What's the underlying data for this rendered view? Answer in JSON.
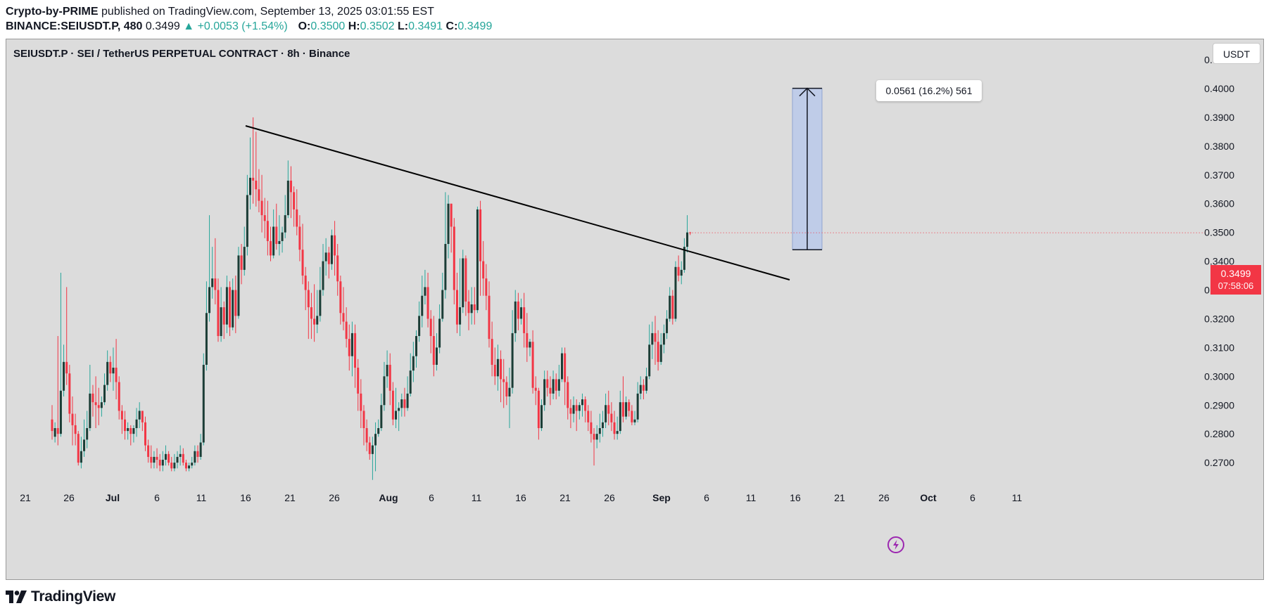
{
  "header": {
    "author": "Crypto-by-PRIME",
    "published_text": "published on TradingView.com, September 13, 2025 03:01:55 EST",
    "symbol": "BINANCE:SEIUSDT.P, 480",
    "last": "0.3499",
    "change": "▲ +0.0053 (+1.54%)",
    "o_label": "O:",
    "o_value": "0.3500",
    "h_label": "H:",
    "h_value": "0.3502",
    "l_label": "L:",
    "l_value": "0.3491",
    "c_label": "C:",
    "c_value": "0.3499"
  },
  "legend_title": "SEIUSDT.P · SEI / TetherUS PERPETUAL CONTRACT · 8h · Binance",
  "unit_button": "USDT",
  "price_tag": {
    "price": "0.3499",
    "countdown": "07:58:06"
  },
  "measure_label": "0.0561 (16.2%) 561",
  "footer": {
    "brand": "TradingView"
  },
  "colors": {
    "up": "#26a69a",
    "up_body": "#1b3d36",
    "down": "#f23645",
    "background": "#dcdcdc",
    "measure_fill": "#bfcce8",
    "trendline": "#000000",
    "flash": "#9c27b0"
  },
  "icons": {
    "flash": "lightning-icon",
    "logo": "tradingview-logo-icon"
  },
  "chart_data": {
    "type": "candlestick",
    "title": "SEIUSDT.P · SEI / TetherUS PERPETUAL CONTRACT · 8h · Binance",
    "y_ticks": [
      "0.4100",
      "0.4000",
      "0.3900",
      "0.3800",
      "0.3700",
      "0.3600",
      "0.3500",
      "0.3400",
      "0.3300",
      "0.3200",
      "0.3100",
      "0.3000",
      "0.2900",
      "0.2800",
      "0.2700"
    ],
    "x_ticks": [
      "21",
      "26",
      "Jul",
      "6",
      "11",
      "16",
      "21",
      "26",
      "Aug",
      "6",
      "11",
      "16",
      "21",
      "26",
      "Sep",
      "6",
      "11",
      "16",
      "21",
      "26",
      "Oct",
      "6",
      "11"
    ],
    "ylim": [
      0.2627,
      0.4171
    ],
    "candles": [
      [
        0.285,
        0.281,
        0.278,
        0.29
      ],
      [
        0.279,
        0.282,
        0.277,
        0.284
      ],
      [
        0.282,
        0.28,
        0.276,
        0.314
      ],
      [
        0.28,
        0.295,
        0.279,
        0.336
      ],
      [
        0.295,
        0.305,
        0.293,
        0.311
      ],
      [
        0.305,
        0.301,
        0.297,
        0.331
      ],
      [
        0.301,
        0.287,
        0.284,
        0.304
      ],
      [
        0.287,
        0.283,
        0.276,
        0.293
      ],
      [
        0.283,
        0.28,
        0.276,
        0.287
      ],
      [
        0.28,
        0.27,
        0.269,
        0.281
      ],
      [
        0.27,
        0.274,
        0.268,
        0.279
      ],
      [
        0.274,
        0.278,
        0.272,
        0.285
      ],
      [
        0.278,
        0.282,
        0.275,
        0.288
      ],
      [
        0.282,
        0.294,
        0.281,
        0.304
      ],
      [
        0.294,
        0.291,
        0.286,
        0.297
      ],
      [
        0.291,
        0.29,
        0.282,
        0.3
      ],
      [
        0.29,
        0.289,
        0.283,
        0.296
      ],
      [
        0.289,
        0.291,
        0.286,
        0.293
      ],
      [
        0.291,
        0.297,
        0.29,
        0.301
      ],
      [
        0.297,
        0.305,
        0.295,
        0.309
      ],
      [
        0.305,
        0.301,
        0.298,
        0.307
      ],
      [
        0.301,
        0.303,
        0.295,
        0.31
      ],
      [
        0.303,
        0.298,
        0.292,
        0.313
      ],
      [
        0.298,
        0.288,
        0.285,
        0.3
      ],
      [
        0.288,
        0.285,
        0.28,
        0.29
      ],
      [
        0.285,
        0.281,
        0.278,
        0.288
      ],
      [
        0.281,
        0.282,
        0.278,
        0.284
      ],
      [
        0.282,
        0.28,
        0.276,
        0.283
      ],
      [
        0.28,
        0.282,
        0.277,
        0.283
      ],
      [
        0.282,
        0.285,
        0.279,
        0.289
      ],
      [
        0.285,
        0.288,
        0.282,
        0.291
      ],
      [
        0.288,
        0.284,
        0.281,
        0.288
      ],
      [
        0.284,
        0.276,
        0.274,
        0.286
      ],
      [
        0.276,
        0.272,
        0.27,
        0.278
      ],
      [
        0.272,
        0.27,
        0.268,
        0.276
      ],
      [
        0.27,
        0.272,
        0.268,
        0.274
      ],
      [
        0.272,
        0.271,
        0.268,
        0.275
      ],
      [
        0.271,
        0.269,
        0.267,
        0.273
      ],
      [
        0.269,
        0.271,
        0.267,
        0.274
      ],
      [
        0.271,
        0.273,
        0.269,
        0.276
      ],
      [
        0.273,
        0.27,
        0.269,
        0.274
      ],
      [
        0.27,
        0.268,
        0.267,
        0.272
      ],
      [
        0.268,
        0.27,
        0.267,
        0.273
      ],
      [
        0.27,
        0.272,
        0.268,
        0.274
      ],
      [
        0.272,
        0.273,
        0.269,
        0.276
      ],
      [
        0.273,
        0.27,
        0.269,
        0.275
      ],
      [
        0.27,
        0.268,
        0.267,
        0.271
      ],
      [
        0.268,
        0.269,
        0.267,
        0.27
      ],
      [
        0.269,
        0.27,
        0.268,
        0.272
      ],
      [
        0.27,
        0.274,
        0.269,
        0.276
      ],
      [
        0.274,
        0.272,
        0.27,
        0.276
      ],
      [
        0.272,
        0.277,
        0.271,
        0.28
      ],
      [
        0.277,
        0.304,
        0.276,
        0.308
      ],
      [
        0.304,
        0.322,
        0.302,
        0.333
      ],
      [
        0.322,
        0.331,
        0.319,
        0.356
      ],
      [
        0.331,
        0.334,
        0.327,
        0.345
      ],
      [
        0.334,
        0.33,
        0.325,
        0.348
      ],
      [
        0.33,
        0.314,
        0.312,
        0.334
      ],
      [
        0.314,
        0.324,
        0.312,
        0.331
      ],
      [
        0.324,
        0.318,
        0.313,
        0.326
      ],
      [
        0.318,
        0.331,
        0.315,
        0.335
      ],
      [
        0.331,
        0.317,
        0.314,
        0.333
      ],
      [
        0.317,
        0.33,
        0.316,
        0.334
      ],
      [
        0.33,
        0.321,
        0.315,
        0.335
      ],
      [
        0.321,
        0.342,
        0.32,
        0.345
      ],
      [
        0.342,
        0.337,
        0.332,
        0.346
      ],
      [
        0.337,
        0.345,
        0.335,
        0.352
      ],
      [
        0.345,
        0.363,
        0.342,
        0.37
      ],
      [
        0.363,
        0.369,
        0.358,
        0.383
      ],
      [
        0.369,
        0.368,
        0.36,
        0.39
      ],
      [
        0.368,
        0.365,
        0.359,
        0.385
      ],
      [
        0.365,
        0.361,
        0.357,
        0.372
      ],
      [
        0.361,
        0.356,
        0.35,
        0.37
      ],
      [
        0.356,
        0.354,
        0.348,
        0.362
      ],
      [
        0.354,
        0.347,
        0.342,
        0.361
      ],
      [
        0.347,
        0.342,
        0.34,
        0.352
      ],
      [
        0.342,
        0.352,
        0.341,
        0.358
      ],
      [
        0.352,
        0.346,
        0.344,
        0.36
      ],
      [
        0.346,
        0.347,
        0.342,
        0.356
      ],
      [
        0.347,
        0.35,
        0.343,
        0.352
      ],
      [
        0.35,
        0.356,
        0.348,
        0.363
      ],
      [
        0.356,
        0.368,
        0.355,
        0.375
      ],
      [
        0.368,
        0.364,
        0.355,
        0.373
      ],
      [
        0.364,
        0.358,
        0.352,
        0.366
      ],
      [
        0.358,
        0.352,
        0.349,
        0.365
      ],
      [
        0.352,
        0.344,
        0.34,
        0.356
      ],
      [
        0.344,
        0.335,
        0.332,
        0.353
      ],
      [
        0.335,
        0.33,
        0.323,
        0.338
      ],
      [
        0.33,
        0.324,
        0.313,
        0.333
      ],
      [
        0.324,
        0.32,
        0.313,
        0.329
      ],
      [
        0.32,
        0.318,
        0.312,
        0.332
      ],
      [
        0.318,
        0.321,
        0.315,
        0.33
      ],
      [
        0.321,
        0.33,
        0.319,
        0.338
      ],
      [
        0.33,
        0.34,
        0.328,
        0.346
      ],
      [
        0.34,
        0.343,
        0.335,
        0.348
      ],
      [
        0.343,
        0.339,
        0.334,
        0.345
      ],
      [
        0.339,
        0.349,
        0.337,
        0.351
      ],
      [
        0.349,
        0.342,
        0.335,
        0.354
      ],
      [
        0.342,
        0.333,
        0.328,
        0.346
      ],
      [
        0.333,
        0.322,
        0.318,
        0.335
      ],
      [
        0.322,
        0.319,
        0.316,
        0.331
      ],
      [
        0.319,
        0.313,
        0.31,
        0.324
      ],
      [
        0.313,
        0.307,
        0.302,
        0.318
      ],
      [
        0.307,
        0.315,
        0.3,
        0.319
      ],
      [
        0.315,
        0.303,
        0.296,
        0.318
      ],
      [
        0.303,
        0.294,
        0.288,
        0.306
      ],
      [
        0.294,
        0.288,
        0.282,
        0.299
      ],
      [
        0.288,
        0.282,
        0.276,
        0.29
      ],
      [
        0.282,
        0.277,
        0.274,
        0.285
      ],
      [
        0.277,
        0.273,
        0.271,
        0.279
      ],
      [
        0.273,
        0.276,
        0.264,
        0.279
      ],
      [
        0.276,
        0.28,
        0.267,
        0.284
      ],
      [
        0.28,
        0.282,
        0.279,
        0.285
      ],
      [
        0.282,
        0.29,
        0.281,
        0.294
      ],
      [
        0.29,
        0.3,
        0.288,
        0.305
      ],
      [
        0.3,
        0.304,
        0.296,
        0.309
      ],
      [
        0.304,
        0.295,
        0.29,
        0.308
      ],
      [
        0.295,
        0.285,
        0.283,
        0.298
      ],
      [
        0.285,
        0.288,
        0.282,
        0.296
      ],
      [
        0.288,
        0.289,
        0.281,
        0.291
      ],
      [
        0.289,
        0.292,
        0.286,
        0.294
      ],
      [
        0.292,
        0.289,
        0.286,
        0.296
      ],
      [
        0.289,
        0.294,
        0.288,
        0.3
      ],
      [
        0.294,
        0.302,
        0.293,
        0.308
      ],
      [
        0.302,
        0.307,
        0.298,
        0.312
      ],
      [
        0.307,
        0.314,
        0.303,
        0.316
      ],
      [
        0.314,
        0.321,
        0.312,
        0.326
      ],
      [
        0.321,
        0.328,
        0.317,
        0.335
      ],
      [
        0.328,
        0.331,
        0.325,
        0.337
      ],
      [
        0.331,
        0.32,
        0.317,
        0.336
      ],
      [
        0.32,
        0.314,
        0.308,
        0.323
      ],
      [
        0.314,
        0.304,
        0.3,
        0.321
      ],
      [
        0.304,
        0.31,
        0.302,
        0.315
      ],
      [
        0.31,
        0.32,
        0.308,
        0.325
      ],
      [
        0.32,
        0.33,
        0.319,
        0.336
      ],
      [
        0.33,
        0.346,
        0.327,
        0.364
      ],
      [
        0.346,
        0.36,
        0.341,
        0.363
      ],
      [
        0.36,
        0.352,
        0.343,
        0.36
      ],
      [
        0.352,
        0.33,
        0.325,
        0.355
      ],
      [
        0.33,
        0.318,
        0.315,
        0.336
      ],
      [
        0.318,
        0.324,
        0.314,
        0.341
      ],
      [
        0.324,
        0.341,
        0.322,
        0.344
      ],
      [
        0.341,
        0.326,
        0.321,
        0.342
      ],
      [
        0.326,
        0.322,
        0.316,
        0.33
      ],
      [
        0.322,
        0.325,
        0.318,
        0.331
      ],
      [
        0.325,
        0.323,
        0.318,
        0.331
      ],
      [
        0.323,
        0.358,
        0.322,
        0.359
      ],
      [
        0.358,
        0.34,
        0.328,
        0.361
      ],
      [
        0.34,
        0.334,
        0.328,
        0.347
      ],
      [
        0.334,
        0.328,
        0.323,
        0.339
      ],
      [
        0.328,
        0.313,
        0.31,
        0.333
      ],
      [
        0.313,
        0.304,
        0.3,
        0.319
      ],
      [
        0.304,
        0.3,
        0.297,
        0.31
      ],
      [
        0.3,
        0.306,
        0.295,
        0.311
      ],
      [
        0.306,
        0.299,
        0.291,
        0.309
      ],
      [
        0.299,
        0.298,
        0.289,
        0.306
      ],
      [
        0.298,
        0.293,
        0.29,
        0.3
      ],
      [
        0.293,
        0.296,
        0.282,
        0.303
      ],
      [
        0.296,
        0.315,
        0.294,
        0.323
      ],
      [
        0.315,
        0.326,
        0.312,
        0.33
      ],
      [
        0.326,
        0.32,
        0.316,
        0.329
      ],
      [
        0.32,
        0.324,
        0.318,
        0.327
      ],
      [
        0.324,
        0.315,
        0.31,
        0.329
      ],
      [
        0.315,
        0.31,
        0.305,
        0.322
      ],
      [
        0.31,
        0.312,
        0.307,
        0.313
      ],
      [
        0.312,
        0.296,
        0.294,
        0.316
      ],
      [
        0.296,
        0.295,
        0.29,
        0.3
      ],
      [
        0.295,
        0.282,
        0.278,
        0.296
      ],
      [
        0.282,
        0.29,
        0.281,
        0.292
      ],
      [
        0.29,
        0.299,
        0.288,
        0.302
      ],
      [
        0.299,
        0.296,
        0.293,
        0.302
      ],
      [
        0.296,
        0.294,
        0.29,
        0.3
      ],
      [
        0.294,
        0.299,
        0.292,
        0.302
      ],
      [
        0.299,
        0.295,
        0.292,
        0.301
      ],
      [
        0.295,
        0.299,
        0.293,
        0.304
      ],
      [
        0.299,
        0.308,
        0.298,
        0.31
      ],
      [
        0.308,
        0.298,
        0.29,
        0.31
      ],
      [
        0.298,
        0.289,
        0.285,
        0.3
      ],
      [
        0.289,
        0.287,
        0.282,
        0.292
      ],
      [
        0.287,
        0.29,
        0.284,
        0.293
      ],
      [
        0.29,
        0.288,
        0.281,
        0.292
      ],
      [
        0.288,
        0.29,
        0.285,
        0.291
      ],
      [
        0.29,
        0.292,
        0.286,
        0.294
      ],
      [
        0.292,
        0.288,
        0.284,
        0.293
      ],
      [
        0.288,
        0.284,
        0.281,
        0.29
      ],
      [
        0.284,
        0.28,
        0.277,
        0.288
      ],
      [
        0.28,
        0.278,
        0.269,
        0.282
      ],
      [
        0.278,
        0.28,
        0.275,
        0.283
      ],
      [
        0.28,
        0.282,
        0.277,
        0.287
      ],
      [
        0.282,
        0.284,
        0.279,
        0.288
      ],
      [
        0.284,
        0.29,
        0.282,
        0.294
      ],
      [
        0.29,
        0.287,
        0.283,
        0.295
      ],
      [
        0.287,
        0.284,
        0.281,
        0.291
      ],
      [
        0.284,
        0.28,
        0.278,
        0.288
      ],
      [
        0.28,
        0.281,
        0.278,
        0.286
      ],
      [
        0.281,
        0.291,
        0.28,
        0.295
      ],
      [
        0.291,
        0.286,
        0.284,
        0.3
      ],
      [
        0.286,
        0.291,
        0.285,
        0.293
      ],
      [
        0.291,
        0.288,
        0.286,
        0.292
      ],
      [
        0.288,
        0.284,
        0.283,
        0.29
      ],
      [
        0.284,
        0.285,
        0.283,
        0.288
      ],
      [
        0.285,
        0.294,
        0.284,
        0.298
      ],
      [
        0.294,
        0.297,
        0.292,
        0.3
      ],
      [
        0.297,
        0.295,
        0.292,
        0.299
      ],
      [
        0.295,
        0.3,
        0.294,
        0.303
      ],
      [
        0.3,
        0.311,
        0.299,
        0.318
      ],
      [
        0.311,
        0.315,
        0.306,
        0.319
      ],
      [
        0.315,
        0.312,
        0.304,
        0.321
      ],
      [
        0.312,
        0.305,
        0.302,
        0.316
      ],
      [
        0.305,
        0.311,
        0.304,
        0.315
      ],
      [
        0.311,
        0.315,
        0.308,
        0.318
      ],
      [
        0.315,
        0.32,
        0.313,
        0.323
      ],
      [
        0.32,
        0.328,
        0.319,
        0.331
      ],
      [
        0.328,
        0.32,
        0.318,
        0.33
      ],
      [
        0.32,
        0.338,
        0.319,
        0.34
      ],
      [
        0.338,
        0.335,
        0.333,
        0.342
      ],
      [
        0.335,
        0.337,
        0.332,
        0.34
      ],
      [
        0.337,
        0.345,
        0.336,
        0.348
      ],
      [
        0.345,
        0.35,
        0.343,
        0.356
      ],
      [
        0.35,
        0.3499,
        0.3491,
        0.3502
      ]
    ],
    "trendline": {
      "from": {
        "date": "Jul 16",
        "price": 0.39
      },
      "to": {
        "date": "Sep 13",
        "price": 0.335
      }
    },
    "measure": {
      "from_price": 0.344,
      "to_price": 0.4001,
      "change": "0.0561",
      "percent": "16.2%",
      "ticks": "561"
    }
  }
}
